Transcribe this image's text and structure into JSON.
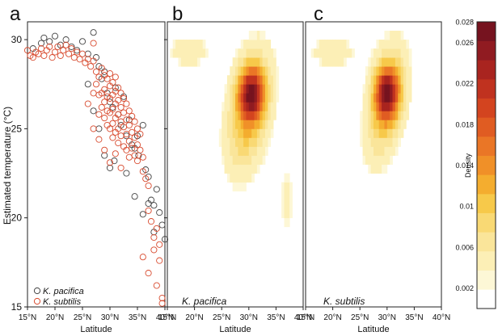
{
  "chart_data": [
    {
      "type": "scatter",
      "panel_letter": "a",
      "xlabel": "Latitude",
      "ylabel": "Estimated temperature (°C)",
      "xlim": [
        15,
        40
      ],
      "ylim": [
        15,
        31
      ],
      "xticks": [
        "15°N",
        "20°N",
        "25°N",
        "30°N",
        "35°N",
        "40°N"
      ],
      "yticks": [
        "15",
        "20",
        "25",
        "30"
      ],
      "legend_position": "bottom-left",
      "series": [
        {
          "name": "K. pacifica",
          "color": "#444444",
          "points": [
            [
              16,
              29.5
            ],
            [
              17.5,
              29.8
            ],
            [
              18,
              30.1
            ],
            [
              19,
              29.9
            ],
            [
              20,
              30.2
            ],
            [
              21,
              29.7
            ],
            [
              22,
              30.0
            ],
            [
              23,
              29.6
            ],
            [
              24,
              29.4
            ],
            [
              25,
              29.9
            ],
            [
              26,
              29.2
            ],
            [
              27,
              30.4
            ],
            [
              27.5,
              29.0
            ],
            [
              28,
              28.5
            ],
            [
              28.5,
              27.8
            ],
            [
              29,
              28.2
            ],
            [
              29.5,
              27.0
            ],
            [
              30,
              26.5
            ],
            [
              30.5,
              26.2
            ],
            [
              31,
              27.3
            ],
            [
              31.5,
              25.8
            ],
            [
              32,
              25.2
            ],
            [
              32.5,
              26.8
            ],
            [
              33,
              24.6
            ],
            [
              33.5,
              25.5
            ],
            [
              34,
              24.1
            ],
            [
              34.5,
              23.9
            ],
            [
              35,
              24.6
            ],
            [
              35.2,
              23.5
            ],
            [
              36,
              25.2
            ],
            [
              36.5,
              22.7
            ],
            [
              37,
              22.3
            ],
            [
              37.5,
              21.0
            ],
            [
              38,
              20.7
            ],
            [
              38.5,
              21.6
            ],
            [
              39,
              20.3
            ],
            [
              39.5,
              19.6
            ],
            [
              40,
              18.8
            ],
            [
              29,
              23.5
            ],
            [
              30,
              22.8
            ],
            [
              30.8,
              23.2
            ],
            [
              28,
              25.0
            ],
            [
              27,
              26.0
            ],
            [
              26,
              27.5
            ],
            [
              34.5,
              21.2
            ],
            [
              33,
              22.5
            ],
            [
              36,
              20.2
            ],
            [
              37,
              20.8
            ],
            [
              38,
              19.2
            ]
          ]
        },
        {
          "name": "K. subtilis",
          "color": "#d84a2e",
          "points": [
            [
              15,
              29.4
            ],
            [
              15.5,
              29.1
            ],
            [
              16,
              29.0
            ],
            [
              16.5,
              29.3
            ],
            [
              17,
              29.2
            ],
            [
              17.5,
              29.5
            ],
            [
              18,
              29.1
            ],
            [
              18.5,
              29.4
            ],
            [
              19,
              29.6
            ],
            [
              19.5,
              29.0
            ],
            [
              20,
              29.3
            ],
            [
              20.5,
              29.6
            ],
            [
              21,
              29.1
            ],
            [
              21.5,
              29.4
            ],
            [
              22,
              29.7
            ],
            [
              22.5,
              29.2
            ],
            [
              23,
              29.5
            ],
            [
              23.5,
              29.0
            ],
            [
              24,
              29.3
            ],
            [
              24.5,
              28.9
            ],
            [
              25,
              29.2
            ],
            [
              25.5,
              28.7
            ],
            [
              26,
              28.9
            ],
            [
              26.5,
              28.5
            ],
            [
              27,
              28.8
            ],
            [
              27,
              29.8
            ],
            [
              27.5,
              28.2
            ],
            [
              27.5,
              27.5
            ],
            [
              28,
              27.9
            ],
            [
              28,
              26.9
            ],
            [
              28,
              25.8
            ],
            [
              28.5,
              28.4
            ],
            [
              28.5,
              27.0
            ],
            [
              28.5,
              26.2
            ],
            [
              29,
              28.0
            ],
            [
              29,
              27.2
            ],
            [
              29,
              26.5
            ],
            [
              29,
              25.6
            ],
            [
              29.5,
              27.8
            ],
            [
              29.5,
              26.8
            ],
            [
              29.5,
              26.0
            ],
            [
              29.5,
              25.2
            ],
            [
              30,
              28.1
            ],
            [
              30,
              27.4
            ],
            [
              30,
              26.7
            ],
            [
              30,
              25.9
            ],
            [
              30,
              25.0
            ],
            [
              30.5,
              27.6
            ],
            [
              30.5,
              26.9
            ],
            [
              30.5,
              26.1
            ],
            [
              30.5,
              25.3
            ],
            [
              30.5,
              24.5
            ],
            [
              31,
              27.9
            ],
            [
              31,
              27.1
            ],
            [
              31,
              26.4
            ],
            [
              31,
              25.6
            ],
            [
              31,
              24.8
            ],
            [
              31.5,
              27.3
            ],
            [
              31.5,
              26.6
            ],
            [
              31.5,
              25.8
            ],
            [
              31.5,
              25.0
            ],
            [
              31.5,
              24.2
            ],
            [
              32,
              27.0
            ],
            [
              32,
              26.2
            ],
            [
              32,
              25.4
            ],
            [
              32,
              24.6
            ],
            [
              32.5,
              26.7
            ],
            [
              32.5,
              25.9
            ],
            [
              32.5,
              25.1
            ],
            [
              32.5,
              24.0
            ],
            [
              33,
              26.4
            ],
            [
              33,
              25.5
            ],
            [
              33,
              24.7
            ],
            [
              33,
              23.8
            ],
            [
              33.5,
              26.0
            ],
            [
              33.5,
              25.2
            ],
            [
              33.5,
              24.3
            ],
            [
              33.5,
              23.4
            ],
            [
              34,
              25.7
            ],
            [
              34,
              24.8
            ],
            [
              34,
              23.9
            ],
            [
              34.5,
              25.4
            ],
            [
              34.5,
              24.5
            ],
            [
              34.5,
              23.5
            ],
            [
              35,
              25.0
            ],
            [
              35,
              24.1
            ],
            [
              35,
              23.2
            ],
            [
              35.5,
              24.7
            ],
            [
              35.5,
              23.8
            ],
            [
              36,
              23.4
            ],
            [
              36,
              22.6
            ],
            [
              36.5,
              22.2
            ],
            [
              37,
              21.8
            ],
            [
              37,
              20.4
            ],
            [
              37.5,
              19.8
            ],
            [
              38,
              18.9
            ],
            [
              38,
              18.2
            ],
            [
              38.5,
              19.4
            ],
            [
              39,
              18.5
            ],
            [
              39,
              17.6
            ],
            [
              36,
              17.8
            ],
            [
              37,
              16.9
            ],
            [
              38.5,
              16.2
            ],
            [
              39.5,
              15.5
            ],
            [
              39.5,
              15.2
            ],
            [
              27,
              25.0
            ],
            [
              28,
              24.4
            ],
            [
              29,
              23.8
            ],
            [
              30,
              23.1
            ],
            [
              31,
              23.6
            ],
            [
              32,
              22.8
            ],
            [
              26,
              26.4
            ],
            [
              27,
              27.0
            ]
          ]
        }
      ]
    },
    {
      "type": "heatmap",
      "panel_letter": "b",
      "annotation": "K. pacifica",
      "xlabel": "Latitude",
      "xlim": [
        15,
        40
      ],
      "ylim": [
        15,
        31
      ],
      "xticks": [
        "15°N",
        "20°N",
        "25°N",
        "30°N",
        "35°N",
        "40°N"
      ],
      "grid_step": 0.5,
      "components": [
        {
          "mx": 30.5,
          "my": 27.0,
          "sx": 1.6,
          "sy": 1.0,
          "w": 1.0
        },
        {
          "mx": 30.0,
          "my": 26.0,
          "sx": 3.0,
          "sy": 2.0,
          "w": 0.55,
          "rotate": -0.55
        },
        {
          "mx": 19.0,
          "my": 29.4,
          "sx": 3.0,
          "sy": 0.7,
          "w": 0.18
        },
        {
          "mx": 37.0,
          "my": 21.0,
          "sx": 1.4,
          "sy": 1.8,
          "w": 0.12
        }
      ],
      "max_density": 0.028
    },
    {
      "type": "heatmap",
      "panel_letter": "c",
      "annotation": "K. subtilis",
      "xlabel": "Latitude",
      "xlim": [
        15,
        40
      ],
      "ylim": [
        15,
        31
      ],
      "xticks": [
        "15°N",
        "20°N",
        "25°N",
        "30°N",
        "35°N",
        "40°N"
      ],
      "grid_step": 0.5,
      "components": [
        {
          "mx": 30.0,
          "my": 27.0,
          "sx": 1.5,
          "sy": 1.0,
          "w": 1.0
        },
        {
          "mx": 29.8,
          "my": 26.5,
          "sx": 2.8,
          "sy": 1.8,
          "w": 0.5,
          "rotate": -0.6
        },
        {
          "mx": 20.0,
          "my": 29.3,
          "sx": 3.5,
          "sy": 0.7,
          "w": 0.16
        }
      ],
      "max_density": 0.028
    }
  ],
  "colorbar": {
    "label": "Density",
    "ticks": [
      "0.002",
      "0.006",
      "0.01",
      "0.014",
      "0.018",
      "0.022",
      "0.026",
      "0.028"
    ],
    "colors": [
      "#ffffff",
      "#fdf7d6",
      "#fcefb6",
      "#fae59a",
      "#f9d974",
      "#f7c94a",
      "#f4ad2f",
      "#f09028",
      "#ea7626",
      "#e05c22",
      "#d3441f",
      "#c0321f",
      "#a9241f",
      "#901b21",
      "#76131f"
    ]
  }
}
